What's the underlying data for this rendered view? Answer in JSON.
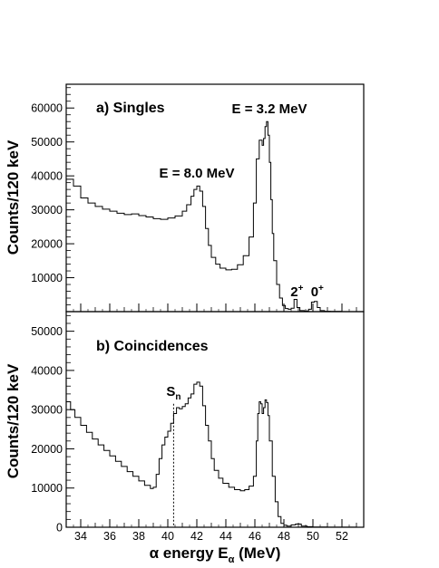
{
  "chart_data": [
    {
      "type": "line",
      "title": "a) Singles",
      "ylabel": "Counts/120 keV",
      "xlim": [
        33,
        53.5
      ],
      "ylim": [
        0,
        67000
      ],
      "yticks": [
        10000,
        20000,
        30000,
        40000,
        50000,
        60000
      ],
      "annotations": [
        {
          "text": "E = 3.2 MeV",
          "x": 47.0,
          "y": 58500
        },
        {
          "text": "E = 8.0 MeV",
          "x": 42.0,
          "y": 39500
        },
        {
          "text": "2",
          "sup": "+",
          "x": 48.9,
          "y": 4500
        },
        {
          "text": "0",
          "sup": "+",
          "x": 50.3,
          "y": 4500
        }
      ],
      "x": [
        33.0,
        33.5,
        34.0,
        34.5,
        35.0,
        35.5,
        36.0,
        36.5,
        37.0,
        37.5,
        38.0,
        38.5,
        39.0,
        39.5,
        40.0,
        40.5,
        41.0,
        41.3,
        41.6,
        41.8,
        42.0,
        42.2,
        42.4,
        42.6,
        42.8,
        43.0,
        43.3,
        43.6,
        44.0,
        44.4,
        44.8,
        45.2,
        45.6,
        45.9,
        46.1,
        46.3,
        46.5,
        46.6,
        46.7,
        46.8,
        46.9,
        47.0,
        47.1,
        47.2,
        47.3,
        47.5,
        47.7,
        47.9,
        48.1,
        48.3,
        48.5,
        48.7,
        48.9,
        49.1,
        49.4,
        49.7,
        49.9,
        50.1,
        50.3,
        50.5,
        50.8,
        51.2,
        52.0,
        53.0
      ],
      "values": [
        39000,
        37000,
        33500,
        32000,
        31000,
        30200,
        29600,
        29000,
        28600,
        28800,
        28300,
        27900,
        27400,
        27200,
        27600,
        28200,
        29600,
        31500,
        34000,
        36000,
        37000,
        35500,
        31000,
        24500,
        19500,
        16000,
        14000,
        12800,
        12300,
        12500,
        13800,
        16500,
        22000,
        32000,
        45000,
        50500,
        49000,
        51000,
        54500,
        56000,
        52000,
        44000,
        33000,
        23000,
        15000,
        8000,
        4000,
        1800,
        900,
        700,
        1000,
        3600,
        1200,
        300,
        200,
        700,
        2800,
        3000,
        1200,
        300,
        100,
        50,
        0,
        0
      ]
    },
    {
      "type": "line",
      "title": "b) Coincidences",
      "ylabel": "Counts/120 keV",
      "xlabel_parts": [
        "α energy E",
        "α",
        " (MeV)"
      ],
      "xlim": [
        33,
        53.5
      ],
      "ylim": [
        0,
        55000
      ],
      "yticks": [
        0,
        10000,
        20000,
        30000,
        40000,
        50000
      ],
      "xticks": [
        34,
        36,
        38,
        40,
        42,
        44,
        46,
        48,
        50,
        52
      ],
      "annotations": [
        {
          "text": "S",
          "sub": "n",
          "x": 40.4,
          "y": 33500
        }
      ],
      "sn_line_x": 40.4,
      "x": [
        33.0,
        33.3,
        33.6,
        34.0,
        34.4,
        34.8,
        35.2,
        35.6,
        36.0,
        36.4,
        36.8,
        37.2,
        37.6,
        38.0,
        38.4,
        38.8,
        39.0,
        39.2,
        39.4,
        39.6,
        39.8,
        40.0,
        40.2,
        40.4,
        40.6,
        40.8,
        41.0,
        41.2,
        41.4,
        41.6,
        41.8,
        42.0,
        42.2,
        42.4,
        42.6,
        42.8,
        43.0,
        43.2,
        43.5,
        43.8,
        44.2,
        44.6,
        45.0,
        45.3,
        45.6,
        45.9,
        46.1,
        46.2,
        46.3,
        46.4,
        46.5,
        46.6,
        46.7,
        46.8,
        46.9,
        47.0,
        47.2,
        47.4,
        47.6,
        47.8,
        48.0,
        48.2,
        48.5,
        48.8,
        49.2,
        49.6,
        50.0,
        51.0,
        53.0
      ],
      "values": [
        32000,
        30000,
        28000,
        26000,
        24200,
        22500,
        21000,
        19600,
        18200,
        16800,
        15500,
        14200,
        13000,
        11800,
        10700,
        9900,
        10200,
        13500,
        17500,
        21000,
        23000,
        24500,
        26500,
        29000,
        30500,
        30200,
        30800,
        31500,
        33000,
        34000,
        36500,
        37000,
        36000,
        31000,
        26000,
        22000,
        17500,
        14500,
        12500,
        11200,
        10200,
        9600,
        9300,
        9600,
        10500,
        13000,
        22000,
        29000,
        32000,
        31500,
        29000,
        30500,
        32500,
        31800,
        28500,
        22000,
        13000,
        6500,
        2700,
        1000,
        500,
        300,
        600,
        800,
        300,
        150,
        80,
        20,
        0
      ]
    }
  ]
}
